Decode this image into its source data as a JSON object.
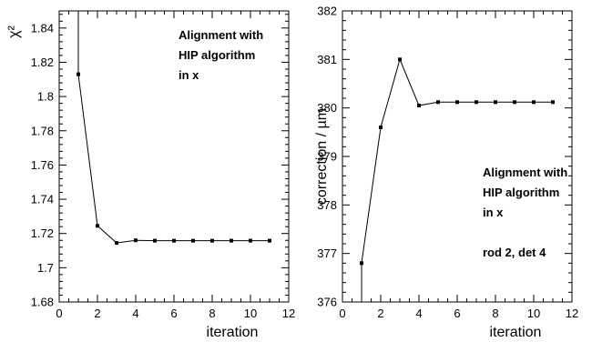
{
  "chart_data": [
    {
      "type": "line",
      "xlabel": "iteration",
      "ylabel": "χ²",
      "xlim": [
        0,
        12
      ],
      "ylim": [
        1.68,
        1.85
      ],
      "xticks": [
        0,
        2,
        4,
        6,
        8,
        10,
        12
      ],
      "yticks": [
        1.68,
        1.7,
        1.72,
        1.74,
        1.76,
        1.78,
        1.8,
        1.82,
        1.84
      ],
      "ytick_labels": [
        "1.68",
        "1.7",
        "1.72",
        "1.74",
        "1.76",
        "1.78",
        "1.8",
        "1.82",
        "1.84"
      ],
      "x": [
        1,
        2,
        3,
        4,
        5,
        6,
        7,
        8,
        9,
        10,
        11
      ],
      "y": [
        1.813,
        1.7245,
        1.7145,
        1.716,
        1.7158,
        1.7158,
        1.7158,
        1.7158,
        1.7158,
        1.7158,
        1.7158
      ],
      "line_from_top_at_x": 1,
      "annotations": [
        {
          "lines": [
            "Alignment with",
            "HIP algorithm",
            "in x"
          ],
          "placement": "top-right"
        }
      ]
    },
    {
      "type": "line",
      "xlabel": "iteration",
      "ylabel": "correction / µm",
      "xlim": [
        0,
        12
      ],
      "ylim": [
        376,
        382
      ],
      "xticks": [
        0,
        2,
        4,
        6,
        8,
        10,
        12
      ],
      "yticks": [
        376,
        377,
        378,
        379,
        380,
        381,
        382
      ],
      "ytick_labels": [
        "376",
        "377",
        "378",
        "379",
        "380",
        "381",
        "382"
      ],
      "x": [
        1,
        2,
        3,
        4,
        5,
        6,
        7,
        8,
        9,
        10,
        11
      ],
      "y": [
        376.8,
        379.6,
        381.0,
        380.05,
        380.12,
        380.12,
        380.12,
        380.12,
        380.12,
        380.12,
        380.12
      ],
      "line_from_bottom_at_x": 1,
      "annotations": [
        {
          "lines": [
            "Alignment with",
            "HIP algorithm",
            "in x"
          ],
          "placement": "middle-right"
        },
        {
          "lines": [
            "rod 2, det 4"
          ],
          "placement": "lower-right"
        }
      ]
    }
  ]
}
